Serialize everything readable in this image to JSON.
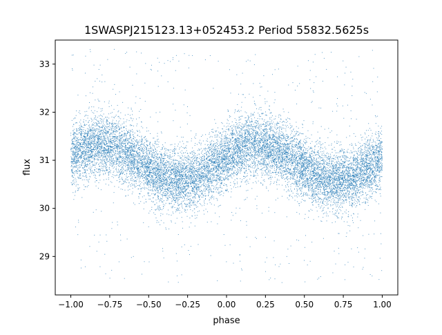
{
  "chart_data": {
    "type": "scatter",
    "title": "1SWASPJ215123.13+052453.2 Period 55832.5625s",
    "xlabel": "phase",
    "ylabel": "flux",
    "xlim": [
      -1.1,
      1.1
    ],
    "ylim": [
      28.2,
      33.5
    ],
    "xticks": [
      "−1.00",
      "−0.75",
      "−0.50",
      "−0.25",
      "0.00",
      "0.25",
      "0.50",
      "0.75",
      "1.00"
    ],
    "yticks": [
      "29",
      "30",
      "31",
      "32",
      "33"
    ],
    "grid": false,
    "legend": "none",
    "marker_color": "#1f77b4",
    "series": [
      {
        "x_range": [
          -1.0,
          1.0
        ],
        "period_in_phase": 1.0,
        "points_per_unit_phase": 7000,
        "mean_flux": 30.95,
        "amplitude": 0.38,
        "peak_phase": 0.2,
        "scatter_sigma": 0.32,
        "outlier_fraction": 0.04,
        "outlier_range": [
          28.45,
          33.35
        ]
      }
    ]
  }
}
